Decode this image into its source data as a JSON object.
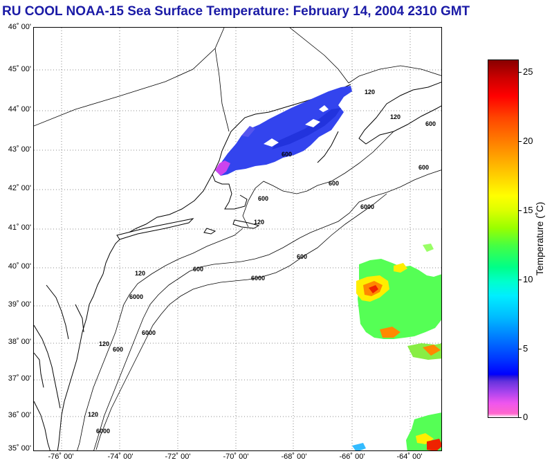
{
  "title": "RU COOL  NOAA-15  Sea Surface Temperature:  February 14, 2004 2310 GMT",
  "map": {
    "lat_labels": [
      "46˚ 00'",
      "45˚ 00'",
      "44˚ 00'",
      "43˚ 00'",
      "42˚ 00'",
      "41˚ 00'",
      "40˚ 00'",
      "39˚ 00'",
      "38˚ 00'",
      "37˚ 00'",
      "36˚ 00'",
      "35˚ 00'"
    ],
    "lon_labels": [
      "-76˚ 00'",
      "-74˚ 00'",
      "-72˚ 00'",
      "-70˚ 00'",
      "-68˚ 00'",
      "-66˚ 00'",
      "-64˚ 00'"
    ],
    "isobath_labels": [
      "120",
      "120",
      "600",
      "600",
      "600",
      "6000",
      "120",
      "600",
      "6000",
      "120",
      "600",
      "6000",
      "120",
      "600",
      "600",
      "6000",
      "120",
      "600",
      "6000"
    ],
    "lon_range": [
      -77.0,
      -63.0
    ],
    "lat_range": [
      35.0,
      46.0
    ],
    "grid": "dotted",
    "coastline_color": "#000000"
  },
  "colorbar": {
    "label": "Temperature (˚C)",
    "ticks": [
      "25",
      "20",
      "15",
      "10",
      "5",
      "0"
    ],
    "tick_values": [
      25,
      20,
      15,
      10,
      5,
      0
    ],
    "range": [
      0,
      26
    ],
    "placement": "right"
  },
  "colors": {
    "title": "#1a1aa6",
    "cold_water": "#3344ee",
    "coldest_water": "#cc44ee",
    "warm_water_yellow": "#ffee00",
    "warm_water_orange": "#ff8800",
    "warm_water_red": "#ee2200",
    "warm_water_green": "#55ff55"
  }
}
